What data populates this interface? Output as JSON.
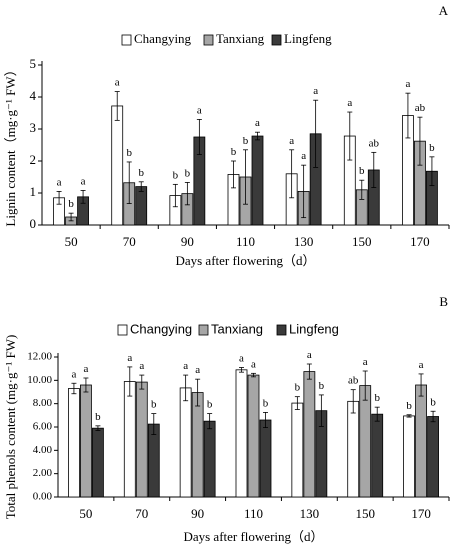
{
  "chart_data": [
    {
      "type": "bar",
      "panel_label": "A",
      "ylabel": "Lignin content（mg·g⁻¹ FW）",
      "xlabel": "Days after flowering（d）",
      "categories": [
        "50",
        "70",
        "90",
        "110",
        "130",
        "150",
        "170"
      ],
      "ylim": [
        0,
        5
      ],
      "yticks": [
        "0",
        "1",
        "2",
        "3",
        "4",
        "5"
      ],
      "legend_position": "top",
      "series": [
        {
          "name": "Changying",
          "color": "#ffffff",
          "values": [
            0.85,
            3.72,
            0.92,
            1.58,
            1.6,
            2.78,
            3.42
          ],
          "errors": [
            0.2,
            0.45,
            0.35,
            0.42,
            0.75,
            0.75,
            0.7
          ],
          "letters": [
            "a",
            "a",
            "b",
            "b",
            "a",
            "a",
            "a"
          ]
        },
        {
          "name": "Tanxiang",
          "color": "#a6a6a6",
          "values": [
            0.25,
            1.32,
            0.98,
            1.5,
            1.05,
            1.1,
            2.62
          ],
          "errors": [
            0.12,
            0.65,
            0.35,
            0.85,
            0.82,
            0.3,
            0.75
          ],
          "letters": [
            "b",
            "b",
            "b",
            "b",
            "a",
            "b",
            "ab"
          ]
        },
        {
          "name": "Lingfeng",
          "color": "#3a3a3a",
          "values": [
            0.88,
            1.2,
            2.75,
            2.78,
            2.85,
            1.72,
            1.68
          ],
          "errors": [
            0.2,
            0.15,
            0.55,
            0.12,
            1.05,
            0.55,
            0.45
          ],
          "letters": [
            "a",
            "b",
            "a",
            "a",
            "a",
            "ab",
            "b"
          ]
        }
      ]
    },
    {
      "type": "bar",
      "panel_label": "B",
      "ylabel": "Total phenols content (mg·g⁻¹ FW)",
      "xlabel": "Days after flowering（d）",
      "categories": [
        "50",
        "70",
        "90",
        "110",
        "130",
        "150",
        "170"
      ],
      "ylim": [
        0,
        12
      ],
      "yticks": [
        "0.00",
        "2.00",
        "4.00",
        "6.00",
        "8.00",
        "10.00",
        "12.00"
      ],
      "legend_position": "top",
      "series": [
        {
          "name": "Changying",
          "color": "#ffffff",
          "values": [
            9.3,
            9.9,
            9.35,
            10.9,
            8.05,
            8.2,
            6.95
          ],
          "errors": [
            0.45,
            1.25,
            1.1,
            0.2,
            0.55,
            1.0,
            0.1
          ],
          "letters": [
            "a",
            "a",
            "a",
            "a",
            "b",
            "ab",
            "b"
          ]
        },
        {
          "name": "Tanxiang",
          "color": "#a6a6a6",
          "values": [
            9.6,
            9.85,
            8.95,
            10.45,
            10.75,
            9.55,
            9.6
          ],
          "errors": [
            0.6,
            0.6,
            1.15,
            0.15,
            0.65,
            1.25,
            0.95
          ],
          "letters": [
            "a",
            "a",
            "a",
            "a",
            "a",
            "a",
            "a"
          ]
        },
        {
          "name": "Lingfeng",
          "color": "#3a3a3a",
          "values": [
            5.9,
            6.25,
            6.5,
            6.6,
            7.4,
            7.1,
            6.9
          ],
          "errors": [
            0.2,
            0.9,
            0.65,
            0.65,
            1.35,
            0.6,
            0.45
          ],
          "letters": [
            "b",
            "b",
            "b",
            "b",
            "b",
            "b",
            "b"
          ]
        }
      ]
    }
  ]
}
